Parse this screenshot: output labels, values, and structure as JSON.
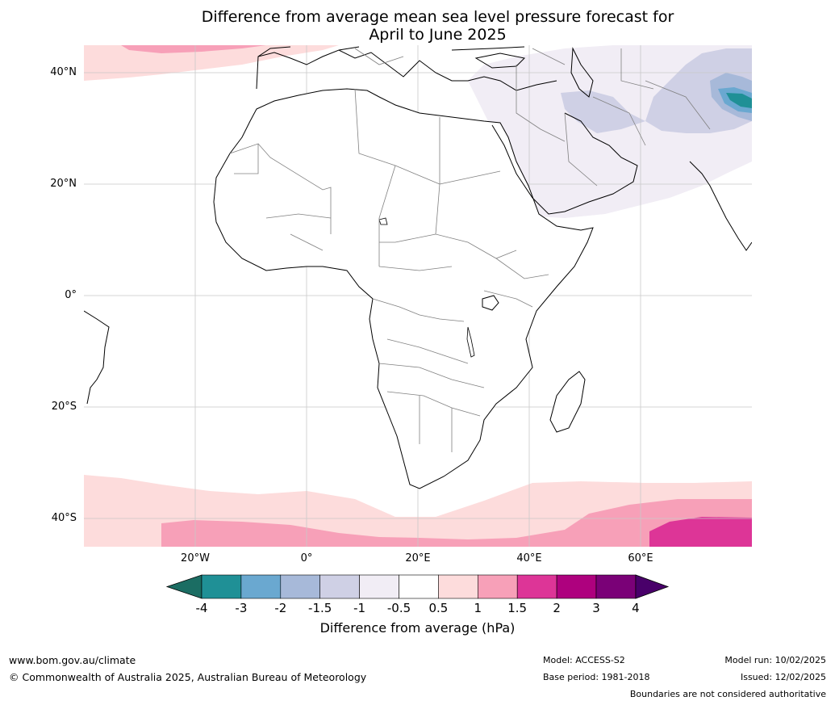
{
  "title": {
    "line1": "Difference from average mean sea level pressure forecast for",
    "line2": "April to June 2025"
  },
  "map": {
    "lat_labels": [
      "40°N",
      "20°N",
      "0°",
      "20°S",
      "40°S"
    ],
    "lon_labels": [
      "20°W",
      "0°",
      "20°E",
      "40°E",
      "60°E"
    ],
    "land_color": "#ffffff",
    "coast_color": "#000000",
    "border_color": "#808080",
    "grid_color": "#c8c8c8"
  },
  "colorbar": {
    "ticks": [
      "-4",
      "-3",
      "-2",
      "-1.5",
      "-1",
      "-0.5",
      "0.5",
      "1",
      "1.5",
      "2",
      "3",
      "4"
    ],
    "colors": [
      "#1b6d63",
      "#1f9096",
      "#6aa8d0",
      "#a7b9d9",
      "#cfd0e5",
      "#f1edf5",
      "#ffffff",
      "#fddcdc",
      "#f7a0b8",
      "#dd3597",
      "#ae017e",
      "#7a0177",
      "#49006a"
    ],
    "label": "Difference from average (hPa)"
  },
  "footer": {
    "website": "www.bom.gov.au/climate",
    "copyright": "© Commonwealth of Australia 2025, Australian Bureau of Meteorology",
    "model": "Model: ACCESS-S2",
    "base_period": "Base period: 1981-2018",
    "model_run": "Model run: 10/02/2025",
    "issued": "Issued: 12/02/2025",
    "disclaimer": "Boundaries are not considered authoritative"
  }
}
